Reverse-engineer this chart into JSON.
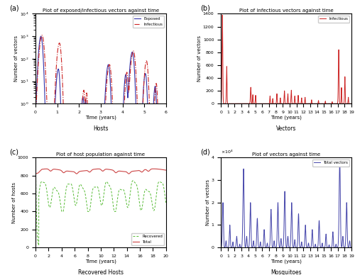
{
  "panel_a": {
    "title": "Plot of exposed/infectious vectors against time",
    "xlabel": "Time (years)",
    "ylabel": "Number of vectors",
    "xlabel2": "Hosts",
    "xlim": [
      0,
      6
    ],
    "ylim_log": [
      1.0,
      10000.0
    ],
    "legend": [
      "Exposed",
      "Infectious"
    ],
    "colors": [
      "#3333aa",
      "#cc2222"
    ],
    "styles": [
      "-",
      "-."
    ]
  },
  "panel_b": {
    "title": "Plot of infectious vectors against time",
    "xlabel": "Time (years)",
    "ylabel": "Number of vectors",
    "xlabel2": "Vectors",
    "xlim": [
      0,
      19
    ],
    "ylim": [
      0,
      1400
    ],
    "legend": [
      "Infectious"
    ],
    "colors": [
      "#cc2222"
    ]
  },
  "panel_c": {
    "title": "Plot of host population against time",
    "xlabel": "Time (years)",
    "ylabel": "Number of hosts",
    "xlabel2": "Recovered Hosts",
    "xlim": [
      0,
      20
    ],
    "ylim": [
      0,
      1000
    ],
    "legend": [
      "Recovered",
      "Total"
    ],
    "colors": [
      "#55bb33",
      "#cc4444"
    ]
  },
  "panel_d": {
    "title": "Plot of vectors against time",
    "xlabel": "Time (years)",
    "ylabel": "Number of vectors",
    "xlabel2": "Mosquitoes",
    "xlim": [
      0,
      19
    ],
    "ylim": [
      0,
      40000
    ],
    "legend": [
      "Total vectors"
    ],
    "colors": [
      "#4444aa"
    ]
  },
  "bg_color": "#ffffff",
  "ax_bg_color": "#ffffff"
}
